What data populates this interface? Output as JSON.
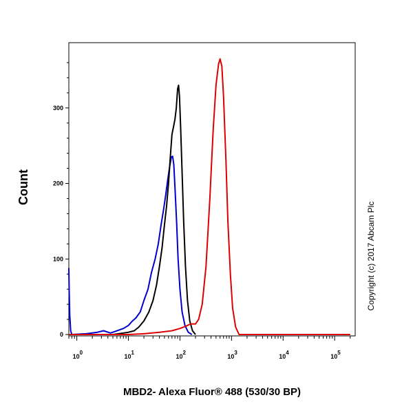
{
  "chart_data": {
    "type": "line",
    "title": "",
    "xlabel": "MBD2- Alexa Fluor® 488 (530/30 BP)",
    "ylabel": "Count",
    "x_scale": "log",
    "xlim": [
      0.7,
      250000
    ],
    "ylim": [
      0,
      370
    ],
    "y_ticks": [
      0,
      100,
      200,
      300
    ],
    "x_ticks": [
      {
        "value": 1,
        "base": "10",
        "exp": "0"
      },
      {
        "value": 10,
        "base": "10",
        "exp": "1"
      },
      {
        "value": 100,
        "base": "10",
        "exp": "2"
      },
      {
        "value": 1000,
        "base": "10",
        "exp": "3"
      },
      {
        "value": 10000,
        "base": "10",
        "exp": "4"
      },
      {
        "value": 100000,
        "base": "10",
        "exp": "5"
      }
    ],
    "grid": false,
    "legend": "none",
    "annotation": "Copyright (c) 2017 Abcam Plc",
    "series": [
      {
        "color": "#0000cc",
        "points": [
          [
            0.7,
            88
          ],
          [
            0.71,
            60
          ],
          [
            0.73,
            25
          ],
          [
            0.76,
            5
          ],
          [
            0.8,
            0
          ],
          [
            1.5,
            1
          ],
          [
            2.5,
            3
          ],
          [
            3.3,
            5
          ],
          [
            4.5,
            2
          ],
          [
            6,
            5
          ],
          [
            8,
            8
          ],
          [
            10,
            12
          ],
          [
            12,
            18
          ],
          [
            14,
            22
          ],
          [
            17,
            30
          ],
          [
            20,
            45
          ],
          [
            24,
            60
          ],
          [
            28,
            82
          ],
          [
            33,
            100
          ],
          [
            38,
            120
          ],
          [
            43,
            145
          ],
          [
            48,
            165
          ],
          [
            53,
            185
          ],
          [
            58,
            205
          ],
          [
            63,
            222
          ],
          [
            68,
            235
          ],
          [
            72,
            236
          ],
          [
            76,
            225
          ],
          [
            80,
            195
          ],
          [
            86,
            150
          ],
          [
            92,
            100
          ],
          [
            100,
            60
          ],
          [
            110,
            30
          ],
          [
            125,
            12
          ],
          [
            145,
            3
          ],
          [
            170,
            0
          ]
        ]
      },
      {
        "color": "#000000",
        "points": [
          [
            0.72,
            0
          ],
          [
            5,
            0
          ],
          [
            8,
            2
          ],
          [
            10,
            3
          ],
          [
            13,
            5
          ],
          [
            16,
            10
          ],
          [
            20,
            18
          ],
          [
            25,
            30
          ],
          [
            30,
            45
          ],
          [
            35,
            65
          ],
          [
            40,
            90
          ],
          [
            45,
            115
          ],
          [
            50,
            145
          ],
          [
            55,
            170
          ],
          [
            60,
            200
          ],
          [
            65,
            235
          ],
          [
            70,
            265
          ],
          [
            75,
            275
          ],
          [
            80,
            285
          ],
          [
            85,
            300
          ],
          [
            90,
            325
          ],
          [
            94,
            330
          ],
          [
            98,
            315
          ],
          [
            103,
            275
          ],
          [
            110,
            215
          ],
          [
            118,
            150
          ],
          [
            128,
            90
          ],
          [
            140,
            45
          ],
          [
            155,
            18
          ],
          [
            175,
            5
          ],
          [
            200,
            0
          ]
        ]
      },
      {
        "color": "#dd0000",
        "points": [
          [
            0.72,
            0
          ],
          [
            10,
            0
          ],
          [
            20,
            1
          ],
          [
            40,
            3
          ],
          [
            70,
            5
          ],
          [
            100,
            8
          ],
          [
            130,
            11
          ],
          [
            160,
            14
          ],
          [
            200,
            14
          ],
          [
            230,
            20
          ],
          [
            270,
            40
          ],
          [
            320,
            90
          ],
          [
            380,
            180
          ],
          [
            440,
            270
          ],
          [
            500,
            330
          ],
          [
            560,
            358
          ],
          [
            600,
            365
          ],
          [
            650,
            355
          ],
          [
            700,
            315
          ],
          [
            780,
            230
          ],
          [
            850,
            150
          ],
          [
            950,
            80
          ],
          [
            1050,
            35
          ],
          [
            1200,
            10
          ],
          [
            1400,
            0
          ],
          [
            200000,
            0
          ]
        ]
      }
    ]
  }
}
